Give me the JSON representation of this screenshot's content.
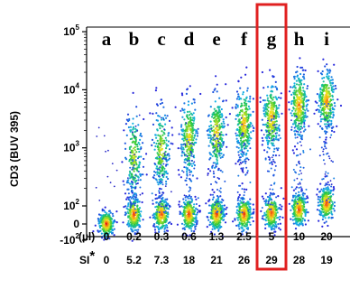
{
  "chart_data": {
    "type": "scatter",
    "ylabel": "CD3 (BUV 395)",
    "y_scale": "biexponential",
    "y_ticks": [
      {
        "base": "10",
        "exp": "5",
        "value": 100000
      },
      {
        "base": "10",
        "exp": "4",
        "value": 10000
      },
      {
        "base": "10",
        "exp": "3",
        "value": 1000
      },
      {
        "base": "10",
        "exp": "2",
        "value": 100
      },
      {
        "base": "0",
        "exp": "",
        "value": 0
      },
      {
        "base": "-10",
        "exp": "2",
        "value": -100
      }
    ],
    "row_labels": {
      "volume": "(µl)",
      "si": "SI",
      "si_marker": "*"
    },
    "highlight_sample": "g",
    "highlight_color": "#e02020",
    "samples": [
      {
        "letter": "a",
        "volume": "0",
        "si": "0",
        "neg_level": 0,
        "pos_level": null,
        "pos_density": 0
      },
      {
        "letter": "b",
        "volume": "0.2",
        "si": "5.2",
        "neg_level": 60,
        "pos_level": 700,
        "pos_density": 0.35
      },
      {
        "letter": "c",
        "volume": "0.3",
        "si": "7.3",
        "neg_level": 60,
        "pos_level": 900,
        "pos_density": 0.4
      },
      {
        "letter": "d",
        "volume": "0.6",
        "si": "18",
        "neg_level": 60,
        "pos_level": 1500,
        "pos_density": 0.5
      },
      {
        "letter": "e",
        "volume": "1.3",
        "si": "21",
        "neg_level": 60,
        "pos_level": 1800,
        "pos_density": 0.55
      },
      {
        "letter": "f",
        "volume": "2.5",
        "si": "26",
        "neg_level": 60,
        "pos_level": 2600,
        "pos_density": 0.6
      },
      {
        "letter": "g",
        "volume": "5",
        "si": "29",
        "neg_level": 70,
        "pos_level": 3300,
        "pos_density": 0.65
      },
      {
        "letter": "h",
        "volume": "10",
        "si": "28",
        "neg_level": 90,
        "pos_level": 5500,
        "pos_density": 0.7
      },
      {
        "letter": "i",
        "volume": "20",
        "si": "19",
        "neg_level": 110,
        "pos_level": 6500,
        "pos_density": 0.7
      }
    ]
  }
}
